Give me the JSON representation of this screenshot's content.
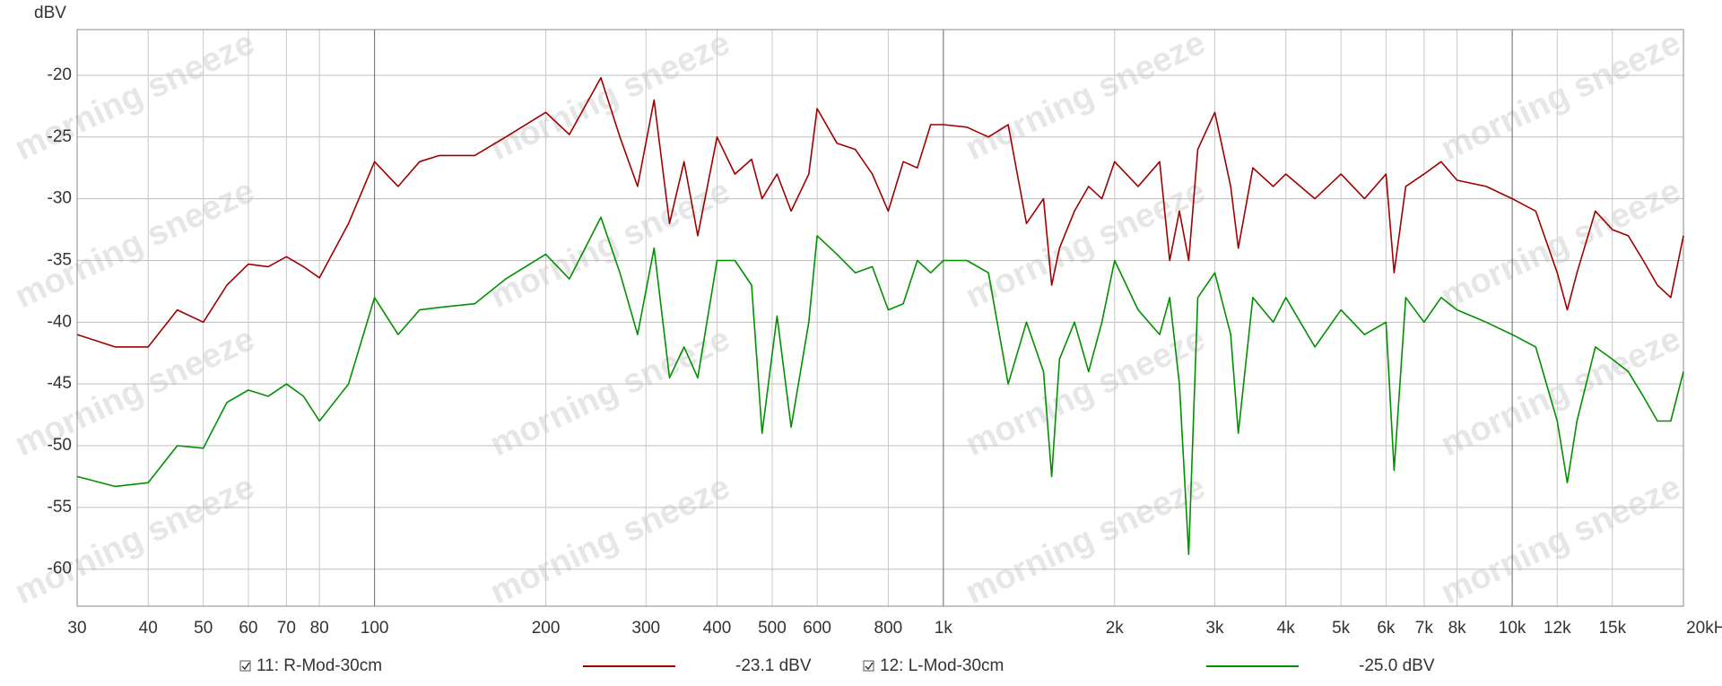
{
  "watermark": "morning sneeze",
  "chart_data": {
    "type": "line",
    "y_label": "dBV",
    "log_x": true,
    "grid": true,
    "xlim": [
      30,
      20000
    ],
    "ylim": [
      -63,
      -16.3
    ],
    "yticks": [
      -60,
      -55,
      -50,
      -45,
      -40,
      -35,
      -30,
      -25,
      -20
    ],
    "xticks": [
      30,
      40,
      50,
      60,
      70,
      80,
      100,
      200,
      300,
      400,
      500,
      600,
      800,
      {
        "value": 1000,
        "label": "1k"
      },
      {
        "value": 2000,
        "label": "2k"
      },
      {
        "value": 3000,
        "label": "3k"
      },
      {
        "value": 4000,
        "label": "4k"
      },
      {
        "value": 5000,
        "label": "5k"
      },
      {
        "value": 6000,
        "label": "6k"
      },
      {
        "value": 7000,
        "label": "7k"
      },
      {
        "value": 8000,
        "label": "8k"
      },
      {
        "value": 10000,
        "label": "10k"
      },
      {
        "value": 12000,
        "label": "12k",
        "color": "#888888"
      },
      {
        "value": 15000,
        "label": "15k",
        "color": "#888888"
      },
      {
        "value": 20000,
        "label": "20kHz"
      }
    ],
    "x": [
      30,
      35,
      40,
      45,
      50,
      55,
      60,
      65,
      70,
      75,
      80,
      90,
      100,
      110,
      120,
      130,
      150,
      170,
      200,
      220,
      250,
      270,
      290,
      310,
      330,
      350,
      370,
      400,
      430,
      460,
      480,
      510,
      540,
      580,
      600,
      650,
      700,
      750,
      800,
      850,
      900,
      950,
      1000,
      1100,
      1200,
      1300,
      1400,
      1500,
      1550,
      1600,
      1700,
      1800,
      1900,
      2000,
      2200,
      2400,
      2500,
      2600,
      2700,
      2800,
      3000,
      3200,
      3300,
      3500,
      3800,
      4000,
      4500,
      5000,
      5500,
      6000,
      6200,
      6500,
      7000,
      7500,
      8000,
      9000,
      10000,
      11000,
      12000,
      12500,
      13000,
      14000,
      15000,
      16000,
      17000,
      18000,
      19000,
      20000
    ],
    "series": [
      {
        "name": "11: R-Mod-30cm",
        "legend_value": "-23.1 dBV",
        "color": "#a00000",
        "values": [
          -41,
          -42,
          -42,
          -39,
          -40,
          -37,
          -35.3,
          -35.5,
          -34.7,
          -35.5,
          -36.4,
          -32,
          -27,
          -29,
          -27,
          -26.5,
          -26.5,
          -25,
          -23,
          -24.8,
          -20.2,
          -25,
          -29,
          -22,
          -32,
          -27,
          -33,
          -25,
          -28,
          -26.8,
          -30,
          -28,
          -31,
          -28,
          -22.7,
          -25.5,
          -26,
          -28,
          -31,
          -27,
          -27.5,
          -24,
          -24,
          -24.2,
          -25,
          -24,
          -32,
          -30,
          -37,
          -34,
          -31,
          -29,
          -30,
          -27,
          -29,
          -27,
          -35,
          -31,
          -35,
          -26,
          -23,
          -29,
          -34,
          -27.5,
          -29,
          -28,
          -30,
          -28,
          -30,
          -28,
          -36,
          -29,
          -28,
          -27,
          -28.5,
          -29,
          -30,
          -31,
          -36,
          -39,
          -36,
          -31,
          -32.5,
          -33,
          -35,
          -37,
          -38,
          -33
        ]
      },
      {
        "name": "12: L-Mod-30cm",
        "legend_value": "-25.0 dBV",
        "color": "#009000",
        "values": [
          -52.5,
          -53.3,
          -53,
          -50,
          -50.2,
          -46.5,
          -45.5,
          -46,
          -45,
          -46,
          -48,
          -45,
          -38,
          -41,
          -39,
          -38.8,
          -38.5,
          -36.5,
          -34.5,
          -36.5,
          -31.5,
          -36,
          -41,
          -34,
          -44.5,
          -42,
          -44.5,
          -35,
          -35,
          -37,
          -49,
          -39.5,
          -48.5,
          -40,
          -33,
          -34.5,
          -36,
          -35.5,
          -39,
          -38.5,
          -35,
          -36,
          -35,
          -35,
          -36,
          -45,
          -40,
          -44,
          -52.5,
          -43,
          -40,
          -44,
          -40,
          -35,
          -39,
          -41,
          -38,
          -45,
          -58.8,
          -38,
          -36,
          -41,
          -49,
          -38,
          -40,
          -38,
          -42,
          -39,
          -41,
          -40,
          -52,
          -38,
          -40,
          -38,
          -39,
          -40,
          -41,
          -42,
          -48,
          -53,
          -48,
          -42,
          -43,
          -44,
          -46,
          -48,
          -48,
          -44
        ]
      }
    ]
  }
}
